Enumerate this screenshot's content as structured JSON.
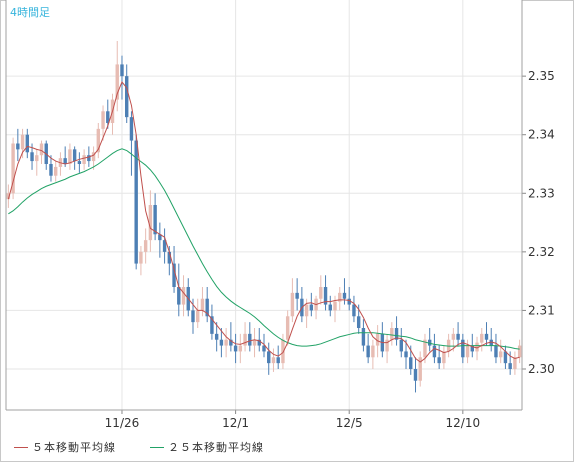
{
  "chart_data": {
    "type": "candlestick",
    "title": "4時間足",
    "ylim": [
      2.293,
      2.363
    ],
    "y_ticks": [
      "2.30",
      "2.31",
      "2.32",
      "2.33",
      "2.34",
      "2.35"
    ],
    "x_ticks": [
      {
        "label": "11/26",
        "index": 24
      },
      {
        "label": "12/1",
        "index": 48
      },
      {
        "label": "12/5",
        "index": 72
      },
      {
        "label": "12/10",
        "index": 96
      }
    ],
    "colors": {
      "up": "#e7bcb3",
      "down": "#4d7fb4",
      "ma5": "#c0504d",
      "ma25": "#21a266",
      "title": "#36b4dc",
      "grid": "#e6e6e6"
    },
    "series": [
      {
        "name": "５本移動平均線",
        "color": "#c0504d"
      },
      {
        "name": "２５本移動平均線",
        "color": "#21a266"
      }
    ],
    "candles": [
      [
        2.329,
        2.3315,
        2.3275,
        2.33
      ],
      [
        2.33,
        2.3395,
        2.329,
        2.3385
      ],
      [
        2.3385,
        2.341,
        2.3355,
        2.3375
      ],
      [
        2.3375,
        2.341,
        2.336,
        2.34
      ],
      [
        2.34,
        2.341,
        2.336,
        2.337
      ],
      [
        2.337,
        2.3385,
        2.334,
        2.3355
      ],
      [
        2.3355,
        2.3375,
        2.333,
        2.3365
      ],
      [
        2.3365,
        2.339,
        2.335,
        2.3385
      ],
      [
        2.3385,
        2.339,
        2.334,
        2.335
      ],
      [
        2.335,
        2.3365,
        2.332,
        2.333
      ],
      [
        2.333,
        2.3355,
        2.332,
        2.3345
      ],
      [
        2.3345,
        2.337,
        2.333,
        2.336
      ],
      [
        2.336,
        2.338,
        2.3345,
        2.335
      ],
      [
        2.335,
        2.3385,
        2.334,
        2.3375
      ],
      [
        2.3375,
        2.338,
        2.334,
        2.3355
      ],
      [
        2.3355,
        2.337,
        2.3335,
        2.335
      ],
      [
        2.335,
        2.3375,
        2.334,
        2.3365
      ],
      [
        2.3365,
        2.338,
        2.3345,
        2.3355
      ],
      [
        2.3355,
        2.338,
        2.334,
        2.337
      ],
      [
        2.337,
        2.342,
        2.336,
        2.341
      ],
      [
        2.341,
        2.345,
        2.339,
        2.344
      ],
      [
        2.344,
        2.346,
        2.341,
        2.342
      ],
      [
        2.342,
        2.347,
        2.34,
        2.346
      ],
      [
        2.346,
        2.356,
        2.344,
        2.352
      ],
      [
        2.352,
        2.3535,
        2.346,
        2.35
      ],
      [
        2.35,
        2.352,
        2.342,
        2.343
      ],
      [
        2.343,
        2.344,
        2.333,
        2.339
      ],
      [
        2.339,
        2.34,
        2.317,
        2.318
      ],
      [
        2.318,
        2.321,
        2.316,
        2.32
      ],
      [
        2.32,
        2.324,
        2.318,
        2.322
      ],
      [
        2.322,
        2.3305,
        2.32,
        2.328
      ],
      [
        2.328,
        2.33,
        2.322,
        2.323
      ],
      [
        2.323,
        2.325,
        2.319,
        2.322
      ],
      [
        2.322,
        2.324,
        2.318,
        2.32
      ],
      [
        2.32,
        2.321,
        2.316,
        2.318
      ],
      [
        2.318,
        2.321,
        2.313,
        2.314
      ],
      [
        2.314,
        2.318,
        2.309,
        2.311
      ],
      [
        2.311,
        2.316,
        2.309,
        2.314
      ],
      [
        2.314,
        2.3155,
        2.309,
        2.31
      ],
      [
        2.31,
        2.312,
        2.306,
        2.308
      ],
      [
        2.308,
        2.312,
        2.307,
        2.31
      ],
      [
        2.31,
        2.314,
        2.309,
        2.312
      ],
      [
        2.312,
        2.314,
        2.308,
        2.309
      ],
      [
        2.309,
        2.311,
        2.305,
        2.306
      ],
      [
        2.306,
        2.308,
        2.303,
        2.305
      ],
      [
        2.305,
        2.307,
        2.302,
        2.304
      ],
      [
        2.304,
        2.307,
        2.302,
        2.305
      ],
      [
        2.305,
        2.308,
        2.303,
        2.304
      ],
      [
        2.304,
        2.306,
        2.301,
        2.303
      ],
      [
        2.303,
        2.306,
        2.301,
        2.304
      ],
      [
        2.304,
        2.308,
        2.303,
        2.306
      ],
      [
        2.306,
        2.308,
        2.303,
        2.304
      ],
      [
        2.304,
        2.307,
        2.302,
        2.305
      ],
      [
        2.305,
        2.307,
        2.303,
        2.304
      ],
      [
        2.304,
        2.306,
        2.302,
        2.303
      ],
      [
        2.303,
        2.3045,
        2.299,
        2.301
      ],
      [
        2.301,
        2.3035,
        2.2995,
        2.302
      ],
      [
        2.302,
        2.304,
        2.3,
        2.301
      ],
      [
        2.301,
        2.306,
        2.3,
        2.305
      ],
      [
        2.305,
        2.31,
        2.304,
        2.309
      ],
      [
        2.309,
        2.3155,
        2.308,
        2.313
      ],
      [
        2.313,
        2.3155,
        2.31,
        2.312
      ],
      [
        2.312,
        2.314,
        2.308,
        2.309
      ],
      [
        2.309,
        2.312,
        2.307,
        2.311
      ],
      [
        2.311,
        2.313,
        2.309,
        2.31
      ],
      [
        2.31,
        2.3125,
        2.3085,
        2.312
      ],
      [
        2.312,
        2.316,
        2.311,
        2.314
      ],
      [
        2.314,
        2.316,
        2.31,
        2.311
      ],
      [
        2.311,
        2.3125,
        2.309,
        2.31
      ],
      [
        2.31,
        2.3125,
        2.308,
        2.3115
      ],
      [
        2.3115,
        2.314,
        2.31,
        2.313
      ],
      [
        2.313,
        2.3155,
        2.311,
        2.312
      ],
      [
        2.312,
        2.314,
        2.31,
        2.311
      ],
      [
        2.311,
        2.3125,
        2.308,
        2.309
      ],
      [
        2.309,
        2.311,
        2.306,
        2.307
      ],
      [
        2.307,
        2.3085,
        2.303,
        2.304
      ],
      [
        2.304,
        2.306,
        2.301,
        2.302
      ],
      [
        2.302,
        2.305,
        2.3,
        2.304
      ],
      [
        2.304,
        2.3075,
        2.302,
        2.306
      ],
      [
        2.306,
        2.308,
        2.302,
        2.303
      ],
      [
        2.303,
        2.306,
        2.301,
        2.305
      ],
      [
        2.305,
        2.308,
        2.304,
        2.307
      ],
      [
        2.307,
        2.309,
        2.304,
        2.305
      ],
      [
        2.305,
        2.307,
        2.302,
        2.303
      ],
      [
        2.303,
        2.305,
        2.3,
        2.302
      ],
      [
        2.302,
        2.304,
        2.299,
        2.3
      ],
      [
        2.3,
        2.302,
        2.296,
        2.298
      ],
      [
        2.298,
        2.303,
        2.297,
        2.302
      ],
      [
        2.302,
        2.306,
        2.301,
        2.305
      ],
      [
        2.305,
        2.307,
        2.303,
        2.304
      ],
      [
        2.304,
        2.306,
        2.301,
        2.302
      ],
      [
        2.302,
        2.304,
        2.3,
        2.301
      ],
      [
        2.301,
        2.304,
        2.3,
        2.303
      ],
      [
        2.303,
        2.306,
        2.302,
        2.305
      ],
      [
        2.305,
        2.307,
        2.303,
        2.306
      ],
      [
        2.306,
        2.308,
        2.304,
        2.305
      ],
      [
        2.305,
        2.306,
        2.301,
        2.302
      ],
      [
        2.302,
        2.305,
        2.301,
        2.304
      ],
      [
        2.304,
        2.306,
        2.302,
        2.303
      ],
      [
        2.303,
        2.3055,
        2.3015,
        2.3045
      ],
      [
        2.3045,
        2.307,
        2.303,
        2.306
      ],
      [
        2.306,
        2.308,
        2.304,
        2.305
      ],
      [
        2.305,
        2.307,
        2.303,
        2.304
      ],
      [
        2.304,
        2.306,
        2.301,
        2.302
      ],
      [
        2.302,
        2.305,
        2.301,
        2.303
      ],
      [
        2.303,
        2.304,
        2.3,
        2.301
      ],
      [
        2.301,
        2.303,
        2.299,
        2.3
      ],
      [
        2.3,
        2.303,
        2.299,
        2.302
      ],
      [
        2.302,
        2.305,
        2.301,
        2.304
      ]
    ],
    "ma5": [
      2.329,
      2.332,
      2.335,
      2.337,
      2.338,
      2.3378,
      2.3375,
      2.3373,
      2.3367,
      2.336,
      2.3355,
      2.3352,
      2.335,
      2.3352,
      2.3355,
      2.3358,
      2.336,
      2.3362,
      2.3365,
      2.3375,
      2.3395,
      2.3415,
      2.344,
      2.347,
      2.349,
      2.348,
      2.345,
      2.34,
      2.333,
      2.327,
      2.324,
      2.3235,
      2.323,
      2.3225,
      2.32,
      2.317,
      2.314,
      2.313,
      2.312,
      2.311,
      2.31,
      2.31,
      2.3095,
      2.3085,
      2.3075,
      2.3065,
      2.3055,
      2.3048,
      2.3043,
      2.3042,
      2.3045,
      2.3048,
      2.305,
      2.3048,
      2.3042,
      2.3032,
      2.3025,
      2.3022,
      2.3028,
      2.3045,
      2.3068,
      2.309,
      2.3105,
      2.3112,
      2.3113,
      2.311,
      2.3113,
      2.3115,
      2.3115,
      2.3117,
      2.3118,
      2.3118,
      2.3117,
      2.3112,
      2.3102,
      2.3088,
      2.307,
      2.3055,
      2.3048,
      2.3045,
      2.3045,
      2.305,
      2.3053,
      2.3052,
      2.3045,
      2.3032,
      2.3018,
      2.3012,
      2.3018,
      2.3028,
      2.3035,
      2.3032,
      2.3028,
      2.303,
      2.3035,
      2.3042,
      2.3045,
      2.3042,
      2.3038,
      2.3036,
      2.304,
      2.3044,
      2.3046,
      2.3044,
      2.3038,
      2.303,
      2.3022,
      2.3018,
      2.302
    ],
    "ma25": [
      2.3265,
      2.327,
      2.3277,
      2.3285,
      2.3292,
      2.3298,
      2.3303,
      2.3308,
      2.3312,
      2.3315,
      2.3318,
      2.3321,
      2.3324,
      2.3328,
      2.3331,
      2.3334,
      2.3337,
      2.3341,
      2.3345,
      2.335,
      2.3356,
      2.3362,
      2.3368,
      2.3373,
      2.3376,
      2.3373,
      2.3367,
      2.336,
      2.3354,
      2.3348,
      2.334,
      2.333,
      2.3318,
      2.3305,
      2.329,
      2.3274,
      2.3258,
      2.3242,
      2.3226,
      2.321,
      2.3195,
      2.318,
      2.3166,
      2.3153,
      2.3141,
      2.3131,
      2.3123,
      2.3116,
      2.311,
      2.3105,
      2.31,
      2.3095,
      2.3089,
      2.3082,
      2.3074,
      2.3067,
      2.306,
      2.3054,
      2.3049,
      2.3045,
      2.3042,
      2.304,
      2.3039,
      2.3039,
      2.304,
      2.3041,
      2.3043,
      2.3046,
      2.3049,
      2.3052,
      2.3055,
      2.3057,
      2.3059,
      2.3061,
      2.3062,
      2.3062,
      2.3062,
      2.3062,
      2.3061,
      2.306,
      2.3059,
      2.3058,
      2.3057,
      2.3056,
      2.3055,
      2.3053,
      2.305,
      2.3048,
      2.3046,
      2.3044,
      2.3042,
      2.3041,
      2.304,
      2.3039,
      2.3039,
      2.3039,
      2.304,
      2.304,
      2.304,
      2.304,
      2.304,
      2.304,
      2.304,
      2.304,
      2.3039,
      2.3038,
      2.3037,
      2.3035,
      2.3034
    ]
  }
}
